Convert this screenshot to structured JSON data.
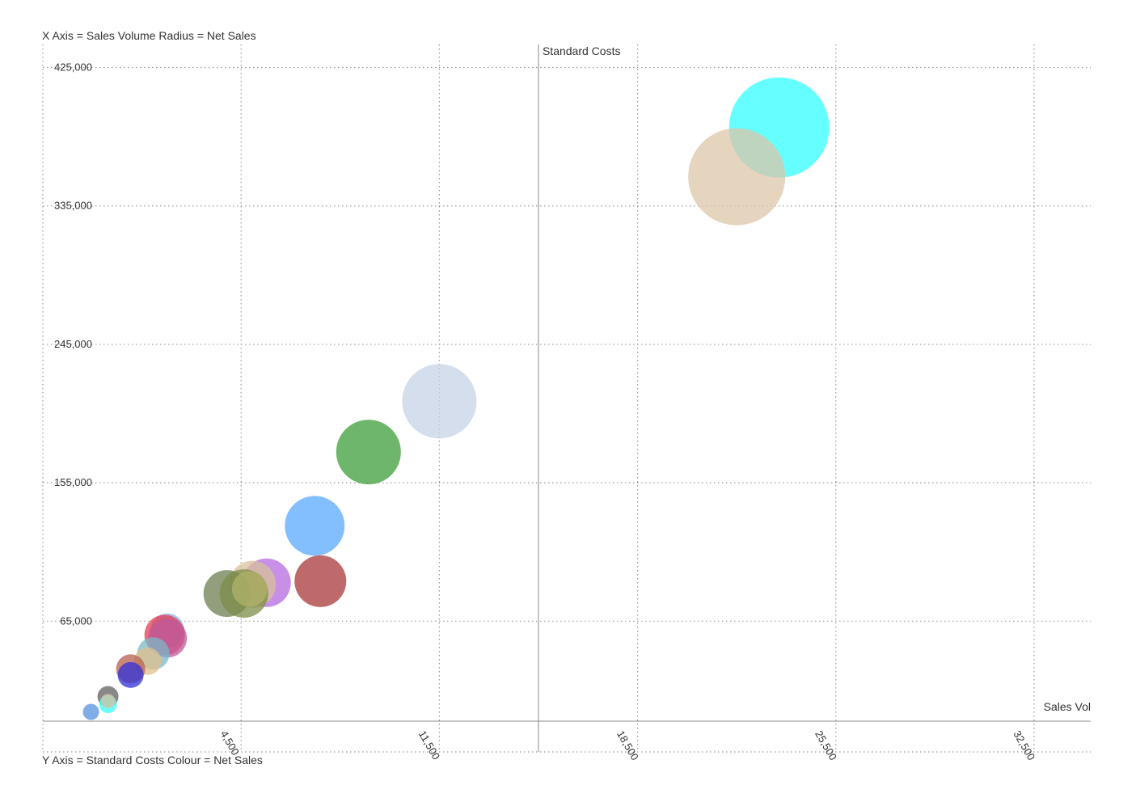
{
  "captions": {
    "top": "X Axis = Sales Volume Radius = Net Sales",
    "bottom": "Y Axis = Standard Costs Colour = Net Sales"
  },
  "chart_data": {
    "type": "scatter",
    "subtype": "bubble",
    "xlabel": "Sales Vol",
    "ylabel": "Standard Costs",
    "xlim": [
      -2500,
      34500
    ],
    "ylim": [
      -20000,
      440000
    ],
    "x_ticks": [
      "4,500",
      "11,500",
      "18,500",
      "25,500",
      "32,500"
    ],
    "y_ticks": [
      "425,000",
      "335,000",
      "245,000",
      "155,000",
      "65,000"
    ],
    "grid": true,
    "points": [
      {
        "x": 23500,
        "y": 386000,
        "size": 62,
        "color": "#33ffff"
      },
      {
        "x": 22000,
        "y": 354000,
        "size": 60,
        "color": "#dcc6a8"
      },
      {
        "x": 11500,
        "y": 208000,
        "size": 46,
        "color": "#c5d3e6"
      },
      {
        "x": 9000,
        "y": 175000,
        "size": 40,
        "color": "#3d9e3a"
      },
      {
        "x": 7100,
        "y": 127000,
        "size": 37,
        "color": "#5aaaff"
      },
      {
        "x": 7300,
        "y": 91000,
        "size": 32,
        "color": "#a83838"
      },
      {
        "x": 5400,
        "y": 90000,
        "size": 30,
        "color": "#b56ae0"
      },
      {
        "x": 4900,
        "y": 89000,
        "size": 29,
        "color": "#d8c29a"
      },
      {
        "x": 4000,
        "y": 83000,
        "size": 29,
        "color": "#6e7e50"
      },
      {
        "x": 4600,
        "y": 83000,
        "size": 30,
        "color": "#7c8c48"
      },
      {
        "x": 4800,
        "y": 86000,
        "size": 22,
        "color": "#b0b26a"
      },
      {
        "x": 1900,
        "y": 59000,
        "size": 21,
        "color": "#8db0e8"
      },
      {
        "x": 1800,
        "y": 56000,
        "size": 25,
        "color": "#e23c50"
      },
      {
        "x": 1900,
        "y": 54000,
        "size": 24,
        "color": "#c0589a"
      },
      {
        "x": 1400,
        "y": 44000,
        "size": 20,
        "color": "#7ab8c8"
      },
      {
        "x": 1200,
        "y": 39000,
        "size": 17,
        "color": "#e0c08c"
      },
      {
        "x": 600,
        "y": 34000,
        "size": 18,
        "color": "#b86050"
      },
      {
        "x": 600,
        "y": 30000,
        "size": 16,
        "color": "#3030d8"
      },
      {
        "x": -200,
        "y": 16000,
        "size": 13,
        "color": "#606060"
      },
      {
        "x": -200,
        "y": 11000,
        "size": 11,
        "color": "#33ffff"
      },
      {
        "x": -200,
        "y": 13000,
        "size": 9,
        "color": "#dcc6a8"
      },
      {
        "x": -800,
        "y": 6000,
        "size": 10,
        "color": "#5590e0"
      }
    ]
  }
}
